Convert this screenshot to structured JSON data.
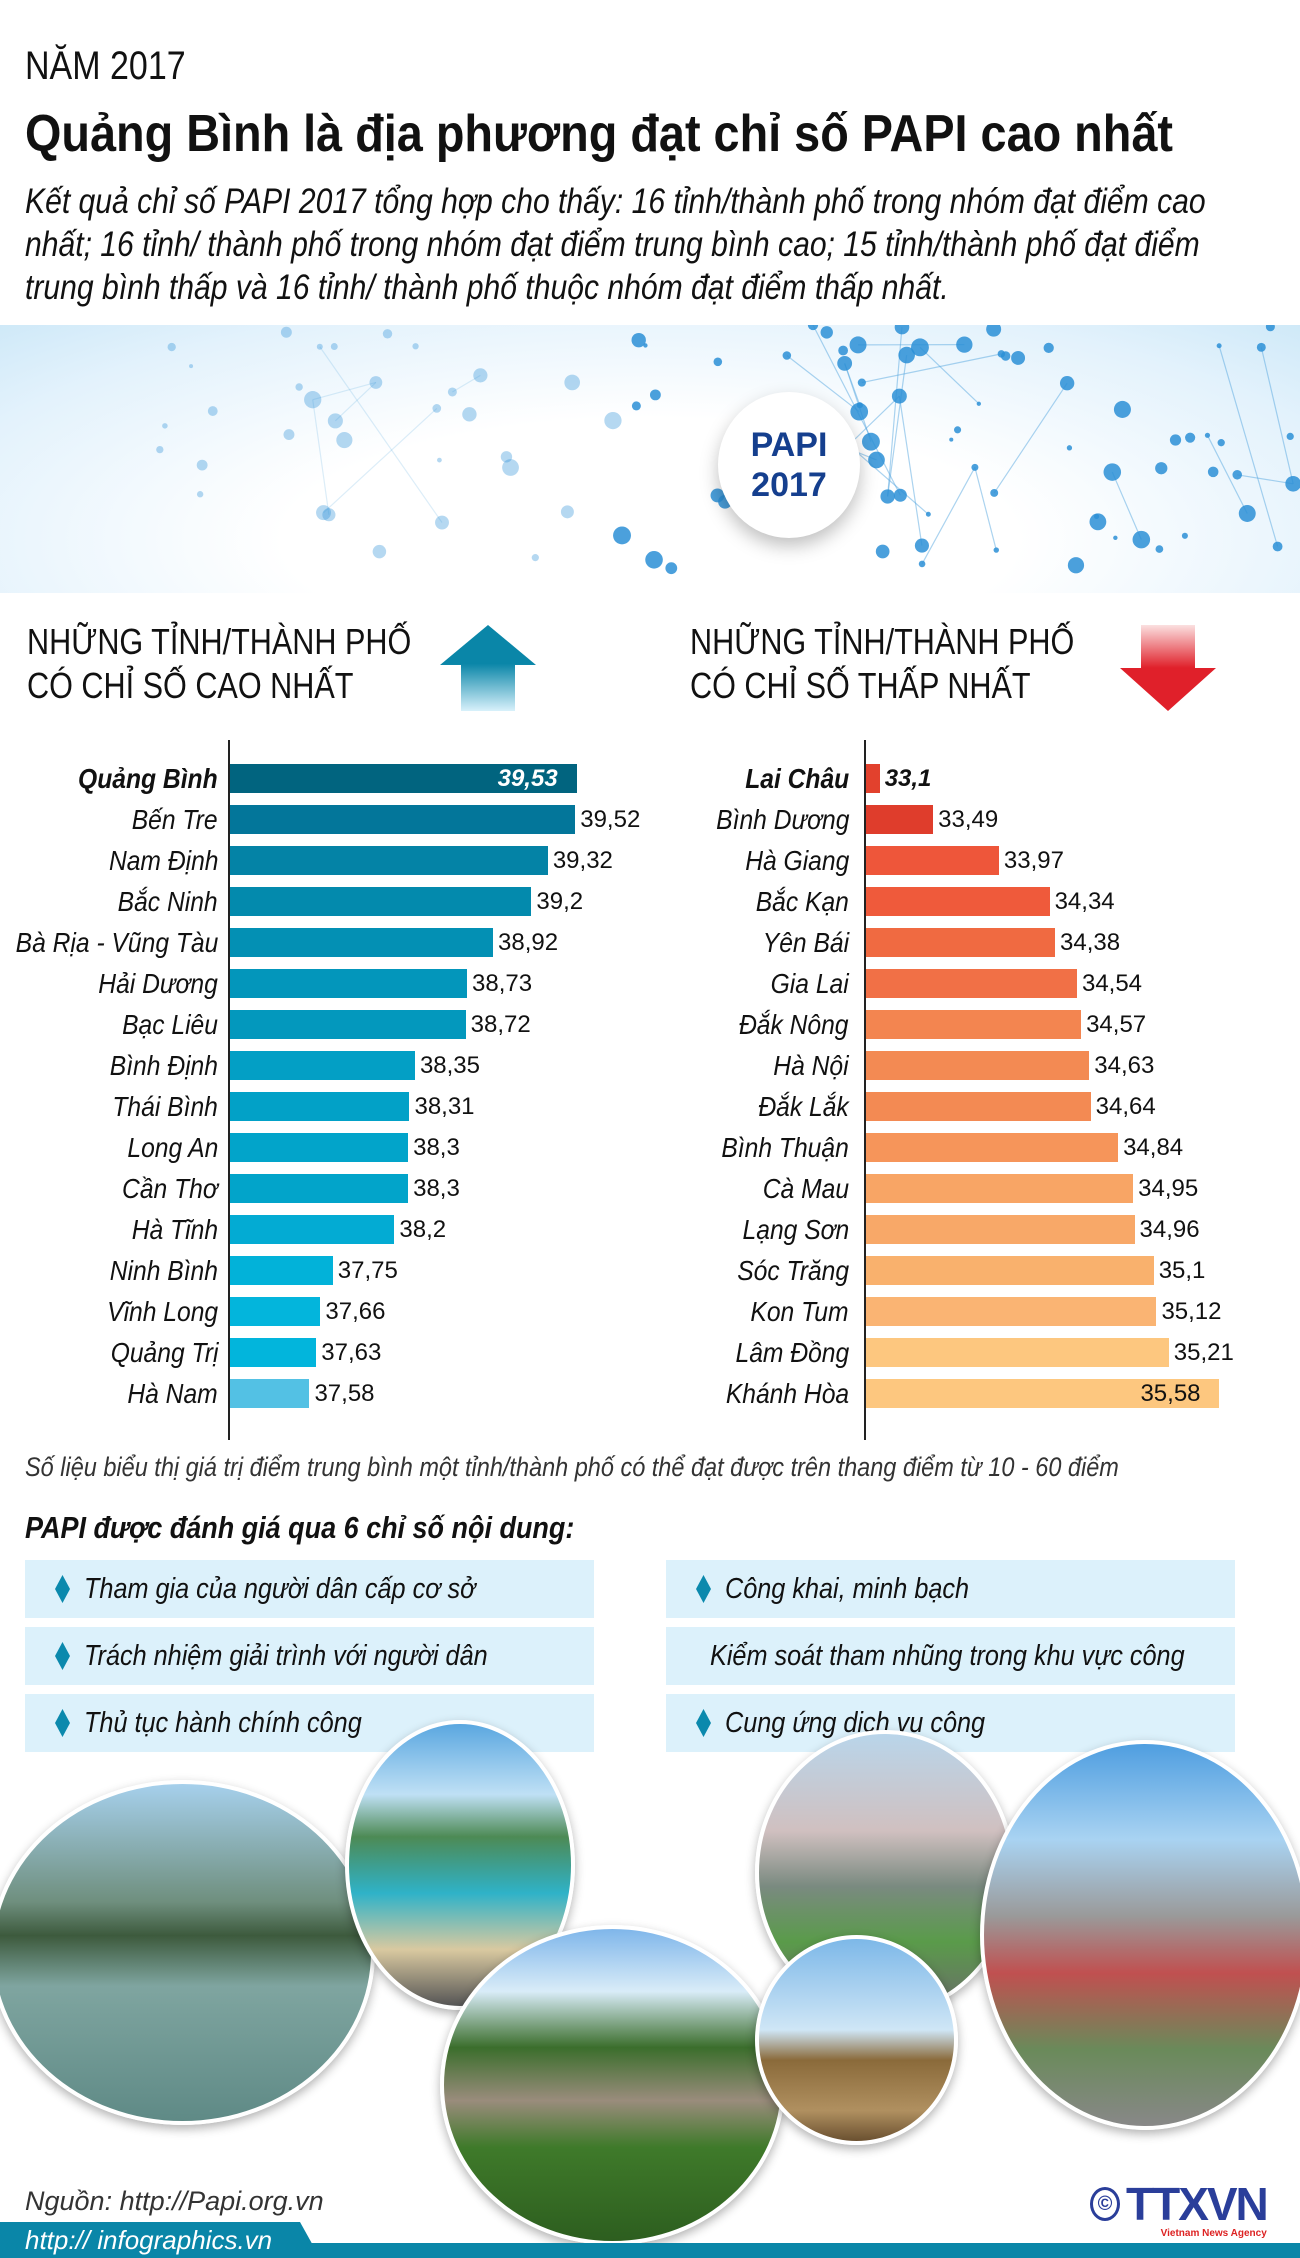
{
  "header": {
    "year": "NĂM 2017",
    "title": "Quảng Bình là địa phương đạt chỉ số PAPI cao nhất",
    "intro": "Kết quả chỉ số PAPI 2017 tổng hợp cho thấy: 16 tỉnh/thành phố trong nhóm đạt điểm cao nhất; 16 tỉnh/ thành phố trong nhóm đạt điểm trung bình cao; 15 tỉnh/thành phố đạt điểm trung bình thấp và 16 tỉnh/ thành phố thuộc nhóm đạt điểm thấp nhất."
  },
  "badge": {
    "line1": "PAPI",
    "line2": "2017"
  },
  "chart_data": [
    {
      "type": "bar",
      "orientation": "horizontal",
      "title": "NHỮNG TỈNH/THÀNH PHỐ CÓ CHỈ SỐ CAO NHẤT",
      "title_lines": [
        "NHỮNG TỈNH/THÀNH PHỐ",
        "CÓ CHỈ SỐ CAO NHẤT"
      ],
      "icon": "arrow-up-icon",
      "categories": [
        "Quảng Bình",
        "Bến Tre",
        "Nam Định",
        "Bắc Ninh",
        "Bà Rịa - Vũng Tàu",
        "Hải Dương",
        "Bạc Liêu",
        "Bình Định",
        "Thái Bình",
        "Long An",
        "Cần Thơ",
        "Hà Tĩnh",
        "Ninh Bình",
        "Vĩnh Long",
        "Quảng Trị",
        "Hà Nam"
      ],
      "values": [
        39.53,
        39.52,
        39.32,
        39.2,
        38.92,
        38.73,
        38.72,
        38.35,
        38.31,
        38.3,
        38.3,
        38.2,
        37.75,
        37.66,
        37.63,
        37.58
      ],
      "labels": [
        "39,53",
        "39,52",
        "39,32",
        "39,2",
        "38,92",
        "38,73",
        "38,72",
        "38,35",
        "38,31",
        "38,3",
        "38,3",
        "38,2",
        "37,75",
        "37,66",
        "37,63",
        "37,58"
      ],
      "colors": [
        "#01647f",
        "#03769a",
        "#0483a6",
        "#038aad",
        "#0390b4",
        "#0396bb",
        "#0398bd",
        "#039fc5",
        "#02a1c7",
        "#02a4ca",
        "#02a4ca",
        "#03abd3",
        "#02b2d9",
        "#03b5dc",
        "#02b5dc",
        "#53c1e4"
      ],
      "xlim": [
        37.0,
        39.6
      ]
    },
    {
      "type": "bar",
      "orientation": "horizontal",
      "title": "NHỮNG TỈNH/THÀNH PHỐ CÓ CHỈ SỐ THẤP NHẤT",
      "title_lines": [
        "NHỮNG TỈNH/THÀNH PHỐ",
        "CÓ CHỈ SỐ THẤP NHẤT"
      ],
      "icon": "arrow-down-icon",
      "categories": [
        "Lai Châu",
        "Bình Dương",
        "Hà Giang",
        "Bắc Kạn",
        "Yên Bái",
        "Gia Lai",
        "Đắk Nông",
        "Hà Nội",
        "Đắk Lắk",
        "Bình Thuận",
        "Cà Mau",
        "Lạng Sơn",
        "Sóc Trăng",
        "Kon Tum",
        "Lâm Đồng",
        "Khánh Hòa"
      ],
      "values": [
        33.1,
        33.49,
        33.97,
        34.34,
        34.38,
        34.54,
        34.57,
        34.63,
        34.64,
        34.84,
        34.95,
        34.96,
        35.1,
        35.12,
        35.21,
        35.58
      ],
      "labels": [
        "33,1",
        "33,49",
        "33,97",
        "34,34",
        "34,38",
        "34,54",
        "34,57",
        "34,63",
        "34,64",
        "34,84",
        "34,95",
        "34,96",
        "35,1",
        "35,12",
        "35,21",
        "35,58"
      ],
      "colors": [
        "#e2412d",
        "#df3d2c",
        "#ee563a",
        "#ef5a3b",
        "#f06a41",
        "#f17046",
        "#f38550",
        "#f38a53",
        "#f38a53",
        "#f6955a",
        "#f8a565",
        "#f8a868",
        "#f9b16d",
        "#fab473",
        "#fdc77f",
        "#fdc77f"
      ],
      "xlim": [
        33.0,
        35.6
      ]
    }
  ],
  "note": "Số liệu biểu thị giá trị điểm trung bình một tỉnh/thành phố có thể đạt được trên thang điểm từ 10 - 60 điểm",
  "criteria": {
    "title": "PAPI được đánh giá qua 6 chỉ số nội dung:",
    "items": [
      "Tham gia của người dân cấp cơ sở",
      "Công khai, minh bạch",
      "Trách nhiệm giải trình với người dân",
      "Kiểm soát tham nhũng trong khu vực công",
      "Thủ tục hành chính công",
      "Cung ứng dịch vụ công"
    ]
  },
  "footer": {
    "source": "Nguồn: http://Papi.org.vn",
    "site": "http:// infographics.vn",
    "logo": "TTXVN",
    "logo_sub": "Vietnam News Agency",
    "copyright": "©"
  },
  "colors": {
    "accent_blue": "#0a86a8",
    "accent_red": "#e0202a",
    "badge_text": "#153f8e"
  }
}
